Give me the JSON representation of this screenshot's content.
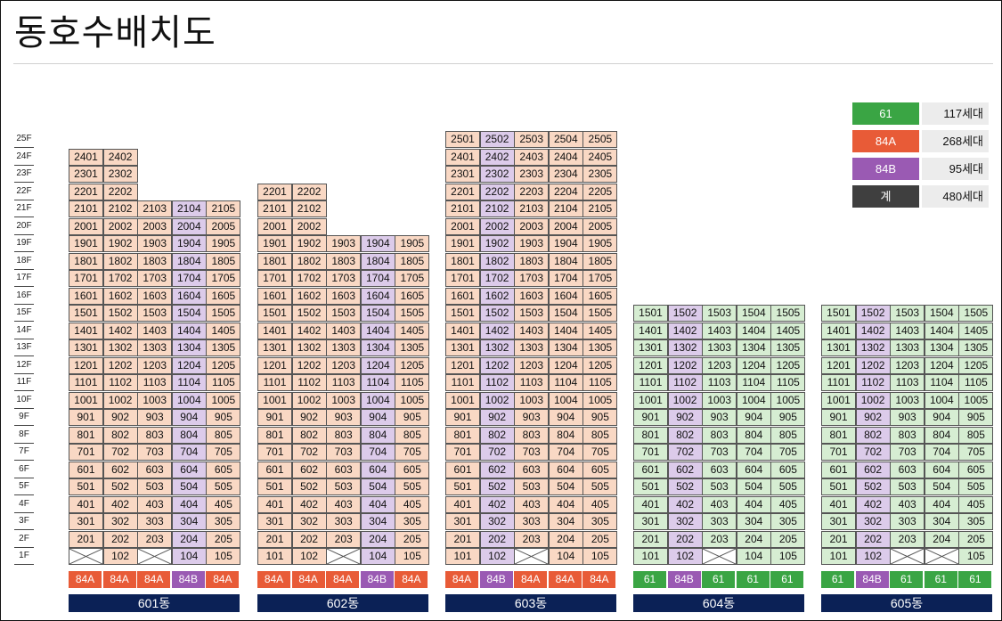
{
  "title": "동호수배치도",
  "colors": {
    "61": "#d6edd2",
    "84A": "#f9d8c4",
    "84B": "#dccbea",
    "type_61": "#3aa544",
    "type_84A": "#e85b37",
    "type_84B": "#9a5ab3",
    "type_total": "#3f3f3f",
    "building_bar": "#0b2156"
  },
  "floors": [
    "25F",
    "24F",
    "23F",
    "22F",
    "21F",
    "20F",
    "19F",
    "18F",
    "17F",
    "16F",
    "15F",
    "14F",
    "13F",
    "12F",
    "11F",
    "10F",
    "9F",
    "8F",
    "7F",
    "6F",
    "5F",
    "4F",
    "3F",
    "2F",
    "1F"
  ],
  "legend": [
    {
      "type": "61",
      "count": "117세대"
    },
    {
      "type": "84A",
      "count": "268세대"
    },
    {
      "type": "84B",
      "count": "95세대"
    },
    {
      "type": "계",
      "count": "480세대"
    }
  ],
  "buildings": [
    {
      "name": "601동",
      "types": [
        "84A",
        "84A",
        "84A",
        "84B",
        "84A"
      ],
      "top_floors": [
        24,
        24,
        21,
        21,
        21
      ],
      "empty_first": [
        true,
        false,
        true,
        false,
        false
      ]
    },
    {
      "name": "602동",
      "types": [
        "84A",
        "84A",
        "84A",
        "84B",
        "84A"
      ],
      "top_floors": [
        22,
        22,
        19,
        19,
        19
      ],
      "empty_first": [
        false,
        false,
        true,
        false,
        false
      ]
    },
    {
      "name": "603동",
      "types": [
        "84A",
        "84B",
        "84A",
        "84A",
        "84A"
      ],
      "top_floors": [
        25,
        25,
        25,
        25,
        25
      ],
      "empty_first": [
        false,
        false,
        true,
        false,
        false
      ]
    },
    {
      "name": "604동",
      "types": [
        "61",
        "84B",
        "61",
        "61",
        "61"
      ],
      "top_floors": [
        15,
        15,
        15,
        15,
        15
      ],
      "empty_first": [
        false,
        false,
        true,
        false,
        false
      ]
    },
    {
      "name": "605동",
      "types": [
        "61",
        "84B",
        "61",
        "61",
        "61"
      ],
      "top_floors": [
        15,
        15,
        15,
        15,
        15
      ],
      "empty_first": [
        false,
        false,
        true,
        true,
        false
      ]
    }
  ]
}
